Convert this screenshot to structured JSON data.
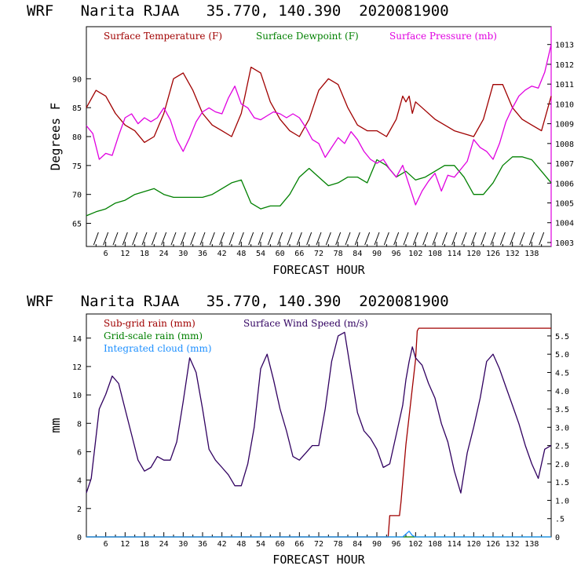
{
  "chart_data": [
    {
      "type": "line",
      "title": "WRF   Narita RJAA   35.770, 140.390  2020081900",
      "xlabel": "FORECAST HOUR",
      "ylabel": "Degrees F",
      "xlim": [
        0,
        144
      ],
      "ylim": [
        61,
        99
      ],
      "y2lim": [
        1002.8,
        1013.9
      ],
      "x_ticks": [
        6,
        12,
        18,
        24,
        30,
        36,
        42,
        48,
        54,
        60,
        66,
        72,
        78,
        84,
        90,
        96,
        102,
        108,
        114,
        120,
        126,
        132,
        138
      ],
      "y_ticks": [
        65,
        70,
        75,
        80,
        85,
        90
      ],
      "y2_ticks": [
        1003,
        1004,
        1005,
        1006,
        1007,
        1008,
        1009,
        1010,
        1011,
        1012,
        1013
      ],
      "series": [
        {
          "name": "Surface Temperature (F)",
          "axis": "left",
          "color": "#a00000",
          "x": [
            0,
            3,
            6,
            9,
            12,
            15,
            18,
            21,
            24,
            27,
            30,
            33,
            36,
            39,
            42,
            45,
            48,
            51,
            54,
            57,
            60,
            63,
            66,
            69,
            72,
            75,
            78,
            81,
            84,
            87,
            90,
            93,
            96,
            98,
            99,
            100,
            101,
            102,
            104,
            108,
            114,
            120,
            123,
            126,
            129,
            132,
            135,
            138,
            141,
            144
          ],
          "y": [
            85,
            88,
            87,
            84,
            82,
            81,
            79,
            80,
            84,
            90,
            91,
            88,
            84,
            82,
            81,
            80,
            84,
            92,
            91,
            86,
            83,
            81,
            80,
            83,
            88,
            90,
            89,
            85,
            82,
            81,
            81,
            80,
            83,
            87,
            86,
            87,
            84,
            86,
            85,
            83,
            81,
            80,
            83,
            89,
            89,
            85,
            83,
            82,
            81,
            87
          ]
        },
        {
          "name": "Surface Dewpoint (F)",
          "axis": "left",
          "color": "#008000",
          "x": [
            0,
            3,
            6,
            9,
            12,
            15,
            18,
            21,
            24,
            27,
            30,
            33,
            36,
            39,
            42,
            45,
            48,
            51,
            54,
            57,
            60,
            63,
            66,
            69,
            72,
            75,
            78,
            81,
            84,
            87,
            90,
            93,
            96,
            99,
            102,
            105,
            108,
            111,
            114,
            117,
            120,
            123,
            126,
            129,
            132,
            135,
            138,
            141,
            144
          ],
          "y": [
            66.3,
            67,
            67.5,
            68.5,
            69,
            70,
            70.5,
            71,
            70,
            69.5,
            69.5,
            69.5,
            69.5,
            70,
            71,
            72,
            72.5,
            68.5,
            67.5,
            68,
            68,
            70,
            73,
            74.5,
            73,
            71.5,
            72,
            73,
            73,
            72,
            76,
            75,
            73,
            74,
            72.5,
            73,
            74,
            75,
            75,
            73,
            70,
            70,
            72,
            75,
            76.5,
            76.5,
            76,
            74,
            72
          ]
        },
        {
          "name": "Surface Pressure (mb)",
          "axis": "right",
          "color": "#e000e0",
          "x": [
            0,
            2,
            4,
            6,
            8,
            10,
            12,
            14,
            16,
            18,
            20,
            22,
            24,
            26,
            28,
            30,
            32,
            34,
            36,
            38,
            40,
            42,
            44,
            46,
            48,
            50,
            52,
            54,
            56,
            58,
            60,
            62,
            64,
            66,
            68,
            70,
            72,
            74,
            76,
            78,
            80,
            82,
            84,
            86,
            88,
            90,
            92,
            94,
            96,
            98,
            100,
            102,
            104,
            106,
            108,
            110,
            112,
            114,
            116,
            118,
            120,
            122,
            124,
            126,
            128,
            130,
            132,
            134,
            136,
            138,
            140,
            142,
            144
          ],
          "y": [
            1008.9,
            1008.5,
            1007.2,
            1007.5,
            1007.4,
            1008.4,
            1009.3,
            1009.5,
            1009.0,
            1009.3,
            1009.1,
            1009.3,
            1009.8,
            1009.2,
            1008.2,
            1007.6,
            1008.3,
            1009.1,
            1009.6,
            1009.8,
            1009.6,
            1009.5,
            1010.3,
            1010.9,
            1010.0,
            1009.8,
            1009.3,
            1009.2,
            1009.4,
            1009.6,
            1009.5,
            1009.3,
            1009.5,
            1009.3,
            1008.8,
            1008.2,
            1008.0,
            1007.3,
            1007.8,
            1008.3,
            1008.0,
            1008.6,
            1008.2,
            1007.6,
            1007.2,
            1007.0,
            1007.2,
            1006.7,
            1006.3,
            1006.9,
            1005.9,
            1004.9,
            1005.6,
            1006.1,
            1006.5,
            1005.6,
            1006.4,
            1006.3,
            1006.7,
            1007.1,
            1008.2,
            1007.8,
            1007.6,
            1007.2,
            1008.0,
            1009.1,
            1009.8,
            1010.4,
            1010.7,
            1010.9,
            1010.8,
            1011.6,
            1013.0
          ]
        }
      ]
    },
    {
      "type": "line",
      "title": "WRF   Narita RJAA   35.770, 140.390  2020081900",
      "xlabel": "FORECAST HOUR",
      "ylabel": "mm",
      "xlim": [
        0,
        144
      ],
      "ylim": [
        0,
        15.7
      ],
      "y2lim": [
        0,
        6.1
      ],
      "x_ticks": [
        6,
        12,
        18,
        24,
        30,
        36,
        42,
        48,
        54,
        60,
        66,
        72,
        78,
        84,
        90,
        96,
        102,
        108,
        114,
        120,
        126,
        132,
        138
      ],
      "y_ticks": [
        0,
        2,
        4,
        6,
        8,
        10,
        12,
        14
      ],
      "y2_ticks": [
        0,
        0.5,
        1.0,
        1.5,
        2.0,
        2.5,
        3.0,
        3.5,
        4.0,
        4.5,
        5.0,
        5.5
      ],
      "y2_tick_labels": [
        "0",
        ".5",
        "1.0",
        "1.5",
        "2.0",
        "2.5",
        "3.0",
        "3.5",
        "4.0",
        "4.5",
        "5.0",
        "5.5"
      ],
      "series": [
        {
          "name": "Sub-grid rain (mm)",
          "axis": "left",
          "color": "#a00000",
          "x": [
            0,
            93.5,
            94,
            97,
            97.5,
            99,
            102,
            102.5,
            103,
            144
          ],
          "y": [
            0,
            0,
            1.5,
            1.5,
            2.5,
            6.5,
            12.5,
            14.5,
            14.7,
            14.7
          ]
        },
        {
          "name": "Grid-scale rain (mm)",
          "axis": "left",
          "color": "#008000",
          "x": [
            0,
            144
          ],
          "y": [
            0,
            0
          ]
        },
        {
          "name": "Integrated cloud (mm)",
          "axis": "left",
          "color": "#1e90ff",
          "x": [
            0,
            98,
            99,
            100,
            101,
            102,
            144
          ],
          "y": [
            0,
            0,
            0.2,
            0.4,
            0.1,
            0,
            0
          ]
        },
        {
          "name": "Surface Wind Speed (m/s)",
          "axis": "right",
          "color": "#300060",
          "x": [
            0,
            1.5,
            4,
            6,
            8,
            10,
            12,
            14,
            16,
            18,
            20,
            22,
            24,
            26,
            28,
            30,
            32,
            34,
            36,
            38,
            40,
            42,
            44,
            46,
            48,
            50,
            52,
            54,
            56,
            58,
            60,
            62,
            64,
            66,
            68,
            70,
            72,
            74,
            76,
            78,
            80,
            82,
            84,
            86,
            88,
            90,
            92,
            94,
            96,
            98,
            99,
            100,
            101,
            102,
            104,
            106,
            108,
            110,
            112,
            114,
            116,
            118,
            120,
            122,
            124,
            126,
            128,
            130,
            132,
            134,
            136,
            138,
            140,
            142,
            144
          ],
          "y": [
            1.2,
            1.6,
            3.5,
            3.9,
            4.4,
            4.2,
            3.5,
            2.8,
            2.1,
            1.8,
            1.9,
            2.2,
            2.1,
            2.1,
            2.6,
            3.7,
            4.9,
            4.5,
            3.5,
            2.4,
            2.1,
            1.9,
            1.7,
            1.4,
            1.4,
            2.0,
            3.0,
            4.6,
            5.0,
            4.3,
            3.5,
            2.9,
            2.2,
            2.1,
            2.3,
            2.5,
            2.5,
            3.5,
            4.8,
            5.5,
            5.6,
            4.5,
            3.4,
            2.9,
            2.7,
            2.4,
            1.9,
            2.0,
            2.8,
            3.6,
            4.3,
            4.8,
            5.2,
            4.9,
            4.7,
            4.2,
            3.8,
            3.1,
            2.6,
            1.8,
            1.2,
            2.3,
            3.0,
            3.8,
            4.8,
            5.0,
            4.6,
            4.1,
            3.6,
            3.1,
            2.5,
            2.0,
            1.6,
            2.4,
            2.5
          ]
        }
      ]
    }
  ]
}
